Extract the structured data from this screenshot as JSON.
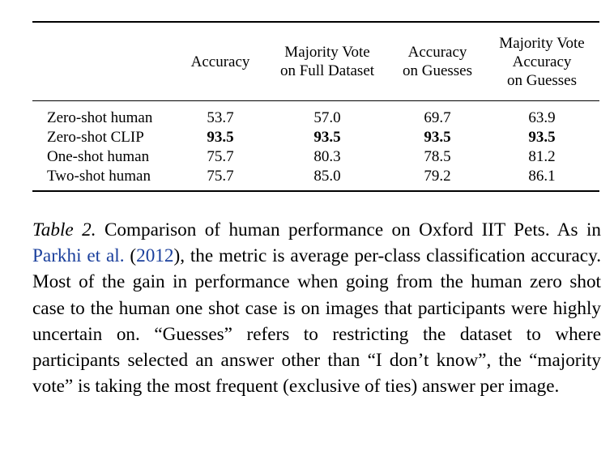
{
  "table": {
    "columns": [
      "",
      "Accuracy",
      "Majority Vote\non Full Dataset",
      "Accuracy\non Guesses",
      "Majority Vote\nAccuracy\non Guesses"
    ],
    "rows": [
      {
        "label": "Zero-shot human",
        "values": [
          "53.7",
          "57.0",
          "69.7",
          "63.9"
        ],
        "bold": false
      },
      {
        "label": "Zero-shot CLIP",
        "values": [
          "93.5",
          "93.5",
          "93.5",
          "93.5"
        ],
        "bold": true
      },
      {
        "label": "One-shot human",
        "values": [
          "75.7",
          "80.3",
          "78.5",
          "81.2"
        ],
        "bold": false
      },
      {
        "label": "Two-shot human",
        "values": [
          "75.7",
          "85.0",
          "79.2",
          "86.1"
        ],
        "bold": false
      }
    ]
  },
  "caption": {
    "label": "Table 2.",
    "text1": " Comparison of human performance on Oxford IIT Pets. As in ",
    "citation_author": "Parkhi et al.",
    "citation_year": "2012",
    "text2": ", the metric is average per-class classification accuracy. Most of the gain in performance when going from the human zero shot case to the human one shot case is on images that participants were highly uncertain on. “Guesses” refers to restricting the dataset to where participants selected an answer other than “I don’t know”, the “majority vote” is taking the most frequent (exclusive of ties) answer per image."
  }
}
